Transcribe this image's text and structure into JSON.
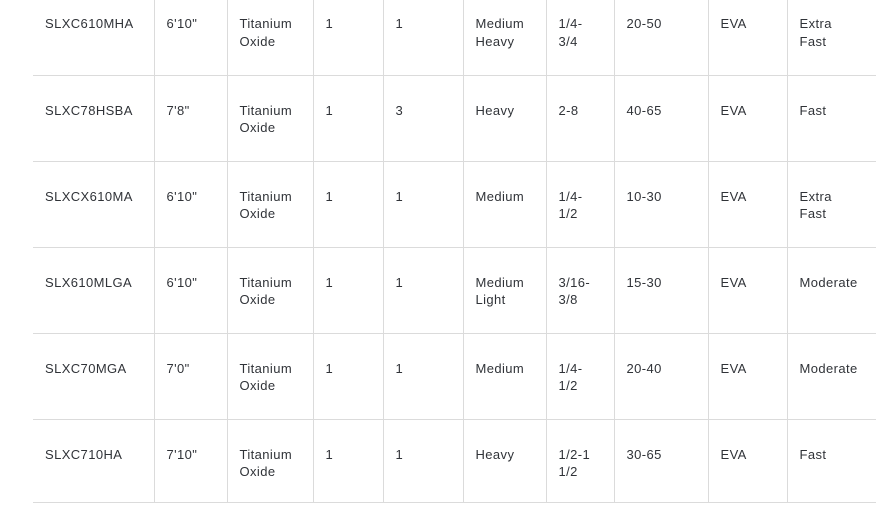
{
  "page": {
    "background_color": "#ffffff"
  },
  "spec_table": {
    "border_color": "#dbdbdb",
    "text_color": "#303338",
    "column_keys": [
      "model",
      "length",
      "guide-material",
      "pieces",
      "sections",
      "power",
      "lure-weight",
      "line-weight",
      "handle-material",
      "action"
    ],
    "rows": [
      [
        "SLXC610MHA",
        "6'10\"",
        "Titanium\nOxide",
        "1",
        "1",
        "Medium\nHeavy",
        "1/4-\n3/4",
        "20-50",
        "EVA",
        "Extra\nFast"
      ],
      [
        "SLXC78HSBA",
        "7'8\"",
        "Titanium\nOxide",
        "1",
        "3",
        "Heavy",
        "2-8",
        "40-65",
        "EVA",
        "Fast"
      ],
      [
        "SLXCX610MA",
        "6'10\"",
        "Titanium\nOxide",
        "1",
        "1",
        "Medium",
        "1/4-\n1/2",
        "10-30",
        "EVA",
        "Extra\nFast"
      ],
      [
        "SLX610MLGA",
        "6'10\"",
        "Titanium\nOxide",
        "1",
        "1",
        "Medium\nLight",
        "3/16-\n3/8",
        "15-30",
        "EVA",
        "Moderate"
      ],
      [
        "SLXC70MGA",
        "7'0\"",
        "Titanium\nOxide",
        "1",
        "1",
        "Medium",
        "1/4-\n1/2",
        "20-40",
        "EVA",
        "Moderate"
      ],
      [
        "SLXC710HA",
        "7'10\"",
        "Titanium\nOxide",
        "1",
        "1",
        "Heavy",
        "1/2-1\n1/2",
        "30-65",
        "EVA",
        "Fast"
      ]
    ]
  }
}
